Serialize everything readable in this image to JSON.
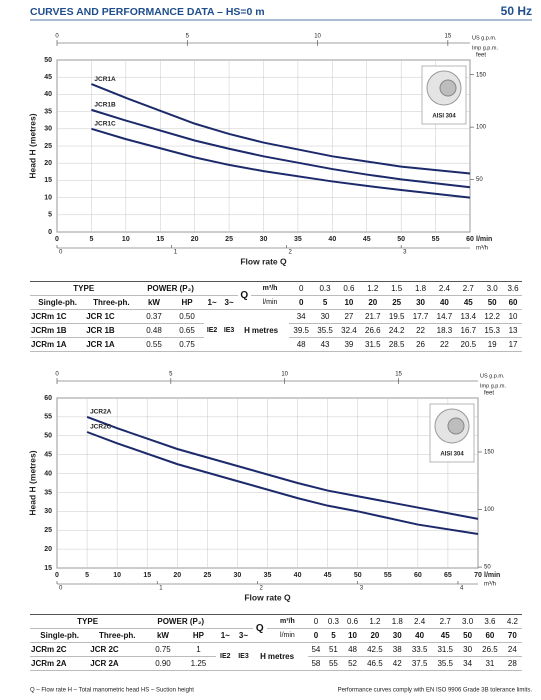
{
  "header": {
    "title": "CURVES AND PERFORMANCE DATA – HS=0 m",
    "frequency": "50 Hz"
  },
  "chart_data": [
    {
      "type": "line",
      "x_label": "Flow rate Q",
      "x_unit": "l/min",
      "y_label": "Head H (metres)",
      "xlim": [
        0,
        60
      ],
      "xticks": [
        0,
        5,
        10,
        15,
        20,
        25,
        30,
        35,
        40,
        45,
        50,
        55,
        60
      ],
      "ylim": [
        0,
        50
      ],
      "yticks": [
        0,
        5,
        10,
        15,
        20,
        25,
        30,
        35,
        40,
        45,
        50
      ],
      "grid": true,
      "x2_unit": "US g.p.m.",
      "x2_unit_alt": "Imp g.p.m.",
      "x2lim": [
        0,
        15.85
      ],
      "x2ticks": [
        0,
        5,
        10,
        15
      ],
      "x3_unit": "m³/h",
      "x3lim": [
        0,
        3.6
      ],
      "x3ticks": [
        0,
        1,
        2,
        3
      ],
      "y2_unit": "feet",
      "y2lim": [
        0,
        164
      ],
      "y2ticks": [
        50,
        100,
        150
      ],
      "badge": "AISI 304",
      "series": [
        {
          "name": "JCR1A",
          "color": "#1c2a6b",
          "x": [
            5,
            10,
            20,
            25,
            30,
            40,
            45,
            50,
            60
          ],
          "values": [
            43,
            39,
            31.5,
            28.5,
            26,
            22,
            20.5,
            19,
            17
          ]
        },
        {
          "name": "JCR1B",
          "color": "#1c2a6b",
          "x": [
            5,
            10,
            20,
            25,
            30,
            40,
            45,
            50,
            60
          ],
          "values": [
            35.5,
            32.4,
            26.6,
            24.2,
            22,
            18.3,
            16.7,
            15.3,
            13
          ]
        },
        {
          "name": "JCR1C",
          "color": "#1c2a6b",
          "x": [
            5,
            10,
            20,
            25,
            30,
            40,
            45,
            50,
            60
          ],
          "values": [
            30,
            27,
            21.7,
            19.5,
            17.7,
            14.7,
            13.4,
            12.2,
            10
          ]
        }
      ]
    },
    {
      "type": "line",
      "x_label": "Flow rate Q",
      "x_unit": "l/min",
      "y_label": "Head H (metres)",
      "xlim": [
        0,
        70
      ],
      "xticks": [
        0,
        5,
        10,
        15,
        20,
        25,
        30,
        35,
        40,
        45,
        50,
        55,
        60,
        65,
        70
      ],
      "ylim": [
        15,
        60
      ],
      "yticks": [
        15,
        20,
        25,
        30,
        35,
        40,
        45,
        50,
        55,
        60
      ],
      "grid": true,
      "x2_unit": "US g.p.m.",
      "x2_unit_alt": "Imp g.p.m.",
      "x2lim": [
        0,
        18.49
      ],
      "x2ticks": [
        0,
        5,
        10,
        15
      ],
      "x3_unit": "m³/h",
      "x3lim": [
        0,
        4.2
      ],
      "x3ticks": [
        0,
        1,
        2,
        3,
        4
      ],
      "y2_unit": "feet",
      "y2lim": [
        49.2,
        196.9
      ],
      "y2ticks": [
        50,
        100,
        150
      ],
      "badge": "AISI 304",
      "series": [
        {
          "name": "JCR2A",
          "color": "#1c2a6b",
          "x": [
            5,
            10,
            20,
            30,
            40,
            45,
            50,
            60,
            70
          ],
          "values": [
            55,
            52,
            46.5,
            42,
            37.5,
            35.5,
            34,
            31,
            28
          ]
        },
        {
          "name": "JCR2C",
          "color": "#1c2a6b",
          "x": [
            5,
            10,
            20,
            30,
            40,
            45,
            50,
            60,
            70
          ],
          "values": [
            51,
            48,
            42.5,
            38,
            33.5,
            31.5,
            30,
            26.5,
            24
          ]
        }
      ]
    }
  ],
  "tables": [
    {
      "header": {
        "type": "TYPE",
        "power": "POWER (P₂)",
        "single": "Single-ph.",
        "three": "Three-ph.",
        "kw": "kW",
        "hp": "HP",
        "one_phase": "1~",
        "three_phase": "3~",
        "q": "Q",
        "h": "H",
        "flow_units": [
          "m³/h",
          "l/min"
        ],
        "head_unit": "metres"
      },
      "flows": [
        [
          "0",
          "0.3",
          "0.6",
          "1.2",
          "1.5",
          "1.8",
          "2.4",
          "2.7",
          "3.0",
          "3.6"
        ],
        [
          "0",
          "5",
          "10",
          "20",
          "25",
          "30",
          "40",
          "45",
          "50",
          "60"
        ]
      ],
      "efficiency": [
        "IE2",
        "IE3"
      ],
      "rows": [
        {
          "single": "JCRm 1C",
          "three": "JCR 1C",
          "kw": "0.37",
          "hp": "0.50",
          "heads": [
            "34",
            "30",
            "27",
            "21.7",
            "19.5",
            "17.7",
            "14.7",
            "13.4",
            "12.2",
            "10"
          ]
        },
        {
          "single": "JCRm 1B",
          "three": "JCR 1B",
          "kw": "0.48",
          "hp": "0.65",
          "heads": [
            "39.5",
            "35.5",
            "32.4",
            "26.6",
            "24.2",
            "22",
            "18.3",
            "16.7",
            "15.3",
            "13"
          ]
        },
        {
          "single": "JCRm 1A",
          "three": "JCR 1A",
          "kw": "0.55",
          "hp": "0.75",
          "heads": [
            "48",
            "43",
            "39",
            "31.5",
            "28.5",
            "26",
            "22",
            "20.5",
            "19",
            "17"
          ]
        }
      ]
    },
    {
      "header": {
        "type": "TYPE",
        "power": "POWER (P₂)",
        "single": "Single-ph.",
        "three": "Three-ph.",
        "kw": "kW",
        "hp": "HP",
        "one_phase": "1~",
        "three_phase": "3~",
        "q": "Q",
        "h": "H",
        "flow_units": [
          "m³/h",
          "l/min"
        ],
        "head_unit": "metres"
      },
      "flows": [
        [
          "0",
          "0.3",
          "0.6",
          "1.2",
          "1.8",
          "2.4",
          "2.7",
          "3.0",
          "3.6",
          "4.2"
        ],
        [
          "0",
          "5",
          "10",
          "20",
          "30",
          "40",
          "45",
          "50",
          "60",
          "70"
        ]
      ],
      "efficiency": [
        "IE2",
        "IE3"
      ],
      "rows": [
        {
          "single": "JCRm 2C",
          "three": "JCR 2C",
          "kw": "0.75",
          "hp": "1",
          "heads": [
            "54",
            "51",
            "48",
            "42.5",
            "38",
            "33.5",
            "31.5",
            "30",
            "26.5",
            "24"
          ]
        },
        {
          "single": "JCRm 2A",
          "three": "JCR 2A",
          "kw": "0.90",
          "hp": "1.25",
          "heads": [
            "58",
            "55",
            "52",
            "46.5",
            "42",
            "37.5",
            "35.5",
            "34",
            "31",
            "28"
          ]
        }
      ]
    }
  ],
  "footer": {
    "legend": "Q – Flow rate   H – Total manometric head   HS – Suction height",
    "note": "Performance curves comply with EN ISO 9906 Grade 3B tolerance limits."
  }
}
